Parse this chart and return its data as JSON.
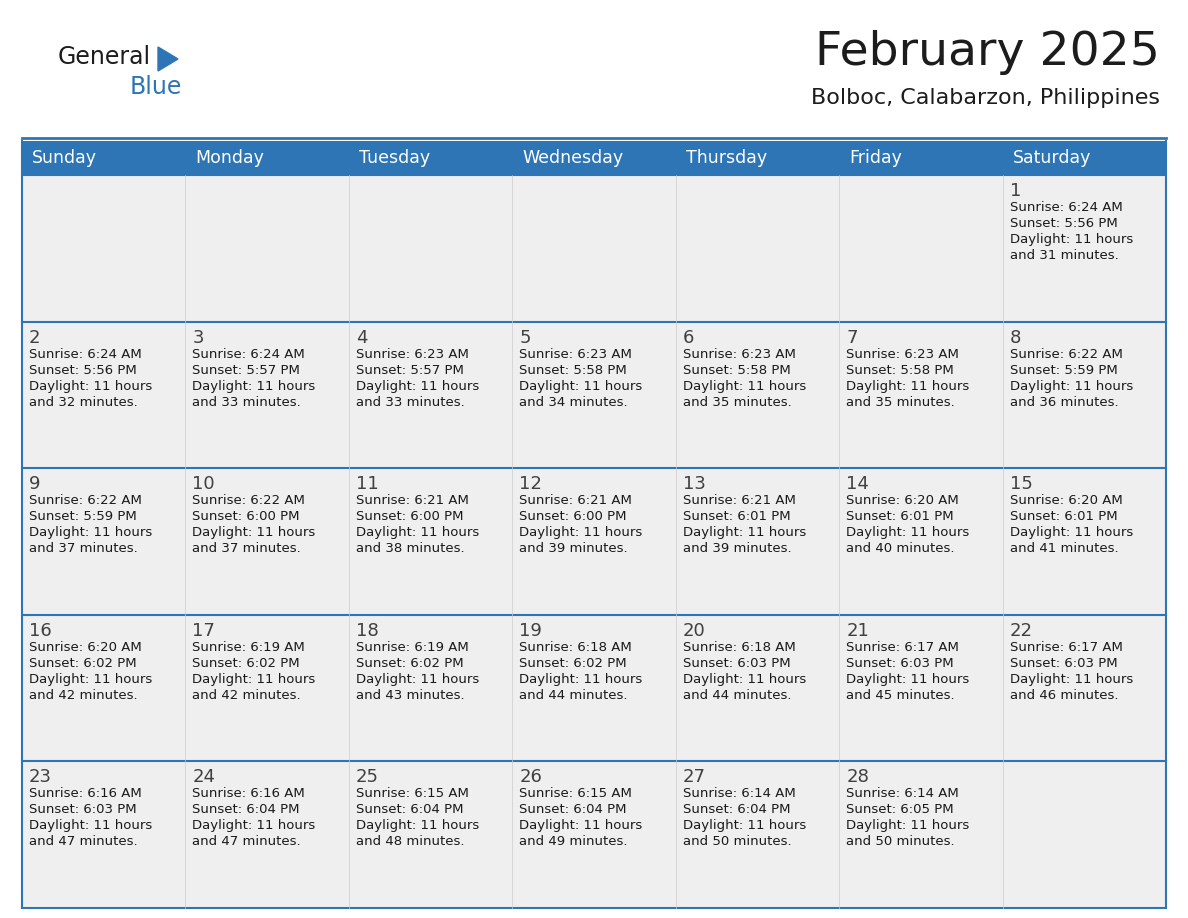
{
  "title": "February 2025",
  "subtitle": "Bolboc, Calabarzon, Philippines",
  "header_bg": "#2E75B6",
  "header_text_color": "#FFFFFF",
  "cell_bg": "#EFEFEF",
  "border_color": "#2E75B6",
  "day_number_color": "#404040",
  "cell_text_color": "#333333",
  "days_of_week": [
    "Sunday",
    "Monday",
    "Tuesday",
    "Wednesday",
    "Thursday",
    "Friday",
    "Saturday"
  ],
  "weeks": [
    [
      {
        "day": "",
        "info": ""
      },
      {
        "day": "",
        "info": ""
      },
      {
        "day": "",
        "info": ""
      },
      {
        "day": "",
        "info": ""
      },
      {
        "day": "",
        "info": ""
      },
      {
        "day": "",
        "info": ""
      },
      {
        "day": "1",
        "info": "Sunrise: 6:24 AM\nSunset: 5:56 PM\nDaylight: 11 hours\nand 31 minutes."
      }
    ],
    [
      {
        "day": "2",
        "info": "Sunrise: 6:24 AM\nSunset: 5:56 PM\nDaylight: 11 hours\nand 32 minutes."
      },
      {
        "day": "3",
        "info": "Sunrise: 6:24 AM\nSunset: 5:57 PM\nDaylight: 11 hours\nand 33 minutes."
      },
      {
        "day": "4",
        "info": "Sunrise: 6:23 AM\nSunset: 5:57 PM\nDaylight: 11 hours\nand 33 minutes."
      },
      {
        "day": "5",
        "info": "Sunrise: 6:23 AM\nSunset: 5:58 PM\nDaylight: 11 hours\nand 34 minutes."
      },
      {
        "day": "6",
        "info": "Sunrise: 6:23 AM\nSunset: 5:58 PM\nDaylight: 11 hours\nand 35 minutes."
      },
      {
        "day": "7",
        "info": "Sunrise: 6:23 AM\nSunset: 5:58 PM\nDaylight: 11 hours\nand 35 minutes."
      },
      {
        "day": "8",
        "info": "Sunrise: 6:22 AM\nSunset: 5:59 PM\nDaylight: 11 hours\nand 36 minutes."
      }
    ],
    [
      {
        "day": "9",
        "info": "Sunrise: 6:22 AM\nSunset: 5:59 PM\nDaylight: 11 hours\nand 37 minutes."
      },
      {
        "day": "10",
        "info": "Sunrise: 6:22 AM\nSunset: 6:00 PM\nDaylight: 11 hours\nand 37 minutes."
      },
      {
        "day": "11",
        "info": "Sunrise: 6:21 AM\nSunset: 6:00 PM\nDaylight: 11 hours\nand 38 minutes."
      },
      {
        "day": "12",
        "info": "Sunrise: 6:21 AM\nSunset: 6:00 PM\nDaylight: 11 hours\nand 39 minutes."
      },
      {
        "day": "13",
        "info": "Sunrise: 6:21 AM\nSunset: 6:01 PM\nDaylight: 11 hours\nand 39 minutes."
      },
      {
        "day": "14",
        "info": "Sunrise: 6:20 AM\nSunset: 6:01 PM\nDaylight: 11 hours\nand 40 minutes."
      },
      {
        "day": "15",
        "info": "Sunrise: 6:20 AM\nSunset: 6:01 PM\nDaylight: 11 hours\nand 41 minutes."
      }
    ],
    [
      {
        "day": "16",
        "info": "Sunrise: 6:20 AM\nSunset: 6:02 PM\nDaylight: 11 hours\nand 42 minutes."
      },
      {
        "day": "17",
        "info": "Sunrise: 6:19 AM\nSunset: 6:02 PM\nDaylight: 11 hours\nand 42 minutes."
      },
      {
        "day": "18",
        "info": "Sunrise: 6:19 AM\nSunset: 6:02 PM\nDaylight: 11 hours\nand 43 minutes."
      },
      {
        "day": "19",
        "info": "Sunrise: 6:18 AM\nSunset: 6:02 PM\nDaylight: 11 hours\nand 44 minutes."
      },
      {
        "day": "20",
        "info": "Sunrise: 6:18 AM\nSunset: 6:03 PM\nDaylight: 11 hours\nand 44 minutes."
      },
      {
        "day": "21",
        "info": "Sunrise: 6:17 AM\nSunset: 6:03 PM\nDaylight: 11 hours\nand 45 minutes."
      },
      {
        "day": "22",
        "info": "Sunrise: 6:17 AM\nSunset: 6:03 PM\nDaylight: 11 hours\nand 46 minutes."
      }
    ],
    [
      {
        "day": "23",
        "info": "Sunrise: 6:16 AM\nSunset: 6:03 PM\nDaylight: 11 hours\nand 47 minutes."
      },
      {
        "day": "24",
        "info": "Sunrise: 6:16 AM\nSunset: 6:04 PM\nDaylight: 11 hours\nand 47 minutes."
      },
      {
        "day": "25",
        "info": "Sunrise: 6:15 AM\nSunset: 6:04 PM\nDaylight: 11 hours\nand 48 minutes."
      },
      {
        "day": "26",
        "info": "Sunrise: 6:15 AM\nSunset: 6:04 PM\nDaylight: 11 hours\nand 49 minutes."
      },
      {
        "day": "27",
        "info": "Sunrise: 6:14 AM\nSunset: 6:04 PM\nDaylight: 11 hours\nand 50 minutes."
      },
      {
        "day": "28",
        "info": "Sunrise: 6:14 AM\nSunset: 6:05 PM\nDaylight: 11 hours\nand 50 minutes."
      },
      {
        "day": "",
        "info": ""
      }
    ]
  ],
  "logo_triangle_color": "#2E75B6",
  "fig_width": 11.88,
  "fig_height": 9.18,
  "dpi": 100
}
